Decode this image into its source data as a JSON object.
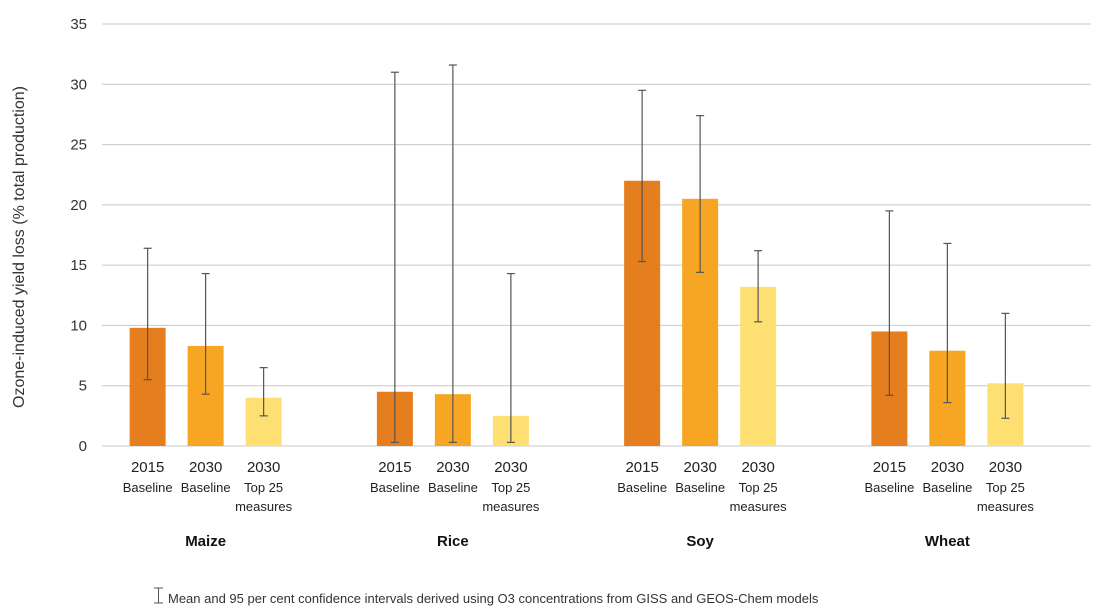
{
  "chart_data": {
    "type": "bar",
    "ylabel": "Ozone-induced yield loss (% total production)",
    "ylim": [
      0,
      35
    ],
    "yticks": [
      0,
      5,
      10,
      15,
      20,
      25,
      30,
      35
    ],
    "grid": true,
    "groups": [
      {
        "crop": "Maize",
        "bars": [
          {
            "year": "2015",
            "sub": [
              "Baseline"
            ],
            "value": 9.8,
            "ci": [
              5.5,
              16.4
            ],
            "color": "#E57E1E"
          },
          {
            "year": "2030",
            "sub": [
              "Baseline"
            ],
            "value": 8.3,
            "ci": [
              4.3,
              14.3
            ],
            "color": "#F6A623"
          },
          {
            "year": "2030",
            "sub": [
              "Top 25",
              "measures"
            ],
            "value": 4.0,
            "ci": [
              2.5,
              6.5
            ],
            "color": "#FDDF72"
          }
        ]
      },
      {
        "crop": "Rice",
        "bars": [
          {
            "year": "2015",
            "sub": [
              "Baseline"
            ],
            "value": 4.5,
            "ci": [
              0.3,
              31.0
            ],
            "color": "#E57E1E"
          },
          {
            "year": "2030",
            "sub": [
              "Baseline"
            ],
            "value": 4.3,
            "ci": [
              0.3,
              31.6
            ],
            "color": "#F6A623"
          },
          {
            "year": "2030",
            "sub": [
              "Top 25",
              "measures"
            ],
            "value": 2.5,
            "ci": [
              0.3,
              14.3
            ],
            "color": "#FDDF72"
          }
        ]
      },
      {
        "crop": "Soy",
        "bars": [
          {
            "year": "2015",
            "sub": [
              "Baseline"
            ],
            "value": 22.0,
            "ci": [
              15.3,
              29.5
            ],
            "color": "#E57E1E"
          },
          {
            "year": "2030",
            "sub": [
              "Baseline"
            ],
            "value": 20.5,
            "ci": [
              14.4,
              27.4
            ],
            "color": "#F6A623"
          },
          {
            "year": "2030",
            "sub": [
              "Top 25",
              "measures"
            ],
            "value": 13.2,
            "ci": [
              10.3,
              16.2
            ],
            "color": "#FDDF72"
          }
        ]
      },
      {
        "crop": "Wheat",
        "bars": [
          {
            "year": "2015",
            "sub": [
              "Baseline"
            ],
            "value": 9.5,
            "ci": [
              4.2,
              19.5
            ],
            "color": "#E57E1E"
          },
          {
            "year": "2030",
            "sub": [
              "Baseline"
            ],
            "value": 7.9,
            "ci": [
              3.6,
              16.8
            ],
            "color": "#F6A623"
          },
          {
            "year": "2030",
            "sub": [
              "Top 25",
              "measures"
            ],
            "value": 5.2,
            "ci": [
              2.3,
              11.0
            ],
            "color": "#FDDF72"
          }
        ]
      }
    ],
    "footnote": "Mean and 95 per cent confidence intervals derived using O3 concentrations from GISS and GEOS-Chem models"
  },
  "colors": {
    "grid": "#C8C8C8",
    "error_bar": "#555555"
  }
}
